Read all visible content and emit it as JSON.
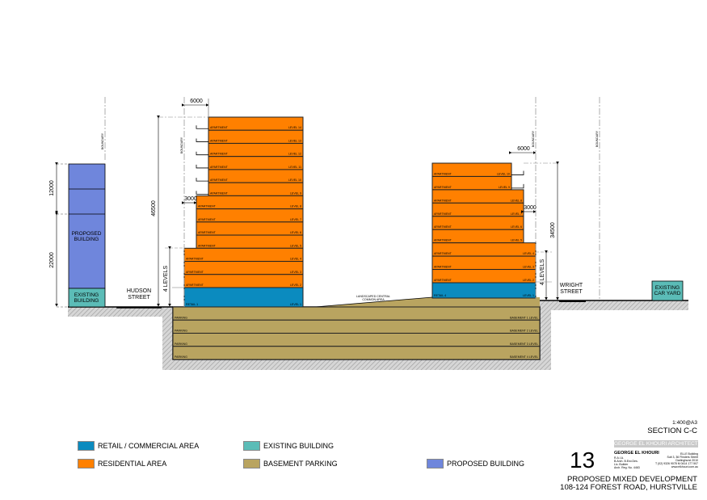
{
  "colors": {
    "retail": "#0b8bbf",
    "residential": "#ff8000",
    "existing": "#5bbcb7",
    "basement": "#b9a460",
    "proposed": "#6f86dc"
  },
  "left_building": {
    "residential_levels": [
      {
        "use": "APARTMENT",
        "level": "LEVEL 14"
      },
      {
        "use": "APARTMENT",
        "level": "LEVEL 13"
      },
      {
        "use": "APARTMENT",
        "level": "LEVEL 12"
      },
      {
        "use": "APARTMENT",
        "level": "LEVEL 11"
      },
      {
        "use": "APARTMENT",
        "level": "LEVEL 10"
      },
      {
        "use": "APARTMENT",
        "level": "LEVEL 9"
      },
      {
        "use": "APARTMENT",
        "level": "LEVEL 8"
      },
      {
        "use": "APARTMENT",
        "level": "LEVEL 7"
      },
      {
        "use": "APARTMENT",
        "level": "LEVEL 6"
      },
      {
        "use": "APARTMENT",
        "level": "LEVEL 5"
      },
      {
        "use": "APARTMENT",
        "level": "LEVEL 4"
      },
      {
        "use": "APARTMENT",
        "level": "LEVEL 3"
      },
      {
        "use": "APARTMENT",
        "level": "LEVEL 2"
      }
    ],
    "retail": {
      "use": "RETAIL 1",
      "level": "LEVEL 1"
    },
    "dim_setback_top": "6000",
    "dim_setback_mid": "3000",
    "dim_height": "46500",
    "dim_podium": "4 LEVELS",
    "boundary": "BOUNDARY"
  },
  "right_building": {
    "residential_levels": [
      {
        "use": "APARTMENT",
        "level": "LEVEL 10"
      },
      {
        "use": "APARTMENT",
        "level": "LEVEL 9"
      },
      {
        "use": "APARTMENT",
        "level": "LEVEL 8"
      },
      {
        "use": "APARTMENT",
        "level": "LEVEL 7"
      },
      {
        "use": "APARTMENT",
        "level": "LEVEL 6"
      },
      {
        "use": "APARTMENT",
        "level": "LEVEL 5"
      },
      {
        "use": "APARTMENT",
        "level": "LEVEL 4"
      },
      {
        "use": "APARTMENT",
        "level": "LEVEL 3"
      },
      {
        "use": "APARTMENT",
        "level": "LEVEL 2"
      }
    ],
    "retail": {
      "use": "RETAIL 4",
      "level": "LEVEL 1"
    },
    "dim_setback_top": "6000",
    "dim_setback_mid": "3000",
    "dim_height": "34500",
    "dim_podium": "4 LEVELS",
    "boundary": "BOUNDARY",
    "boundary_far": "BOUNDARY"
  },
  "basement": {
    "levels": [
      {
        "use": "PARKING",
        "level": "BASEMENT 1 LEVEL"
      },
      {
        "use": "PARKING",
        "level": "BASEMENT 2 LEVEL"
      },
      {
        "use": "PARKING",
        "level": "BASEMENT 3 LEVEL"
      },
      {
        "use": "PARKING",
        "level": "BASEMENT 4 LEVEL"
      }
    ]
  },
  "common_area": {
    "line1": "LANDSCAPED CENTRAL",
    "line2": "COMMON AREA"
  },
  "neighbour_left": {
    "proposed_line1": "PROPOSED",
    "proposed_line2": "BUILDING",
    "existing_line1": "EXISTING",
    "existing_line2": "BUILDING",
    "dim_upper": "12000",
    "dim_lower": "22000",
    "boundary": "BOUNDARY"
  },
  "streets": {
    "left_line1": "HUDSON",
    "left_line2": "STREET",
    "right_line1": "WRIGHT",
    "right_line2": "STREET"
  },
  "neighbour_right": {
    "line1": "EXISTING",
    "line2": "CAR YARD"
  },
  "legend": [
    {
      "label": "RETAIL / COMMERCIAL AREA",
      "color": "#0b8bbf"
    },
    {
      "label": "RESIDENTIAL AREA",
      "color": "#ff8000"
    },
    {
      "label": "EXISTING BUILDING",
      "color": "#5bbcb7"
    },
    {
      "label": "BASEMENT PARKING",
      "color": "#b9a460"
    },
    {
      "label": "PROPOSED BUILDING",
      "color": "#6f86dc"
    }
  ],
  "title_block": {
    "scale": "1:400@A3",
    "section": "SECTION C-C",
    "firm_banner": "GEORGE EL KHOURI ARCHITECTS",
    "sheet_number": "13",
    "architect_name": "GEORGE EL KHOURI",
    "quals_1": "R.A.I.A.",
    "quals_2": "B.Arch. B.Env.Des.",
    "quals_3": "Lic. Builder",
    "quals_4": "Arch. Reg. No. 4463",
    "address_1": "ELLE Building",
    "address_2": "Suit 3, 36 Flinders Street",
    "address_3": "Darlinghurst 2010",
    "phone": "T (02) 9326 9078   M 0414 177 507",
    "web": "www.elkhouri.com.au",
    "project_line1": "PROPOSED MIXED DEVELOPMENT",
    "project_line2": "108-124 FOREST ROAD, HURSTVILLE"
  }
}
